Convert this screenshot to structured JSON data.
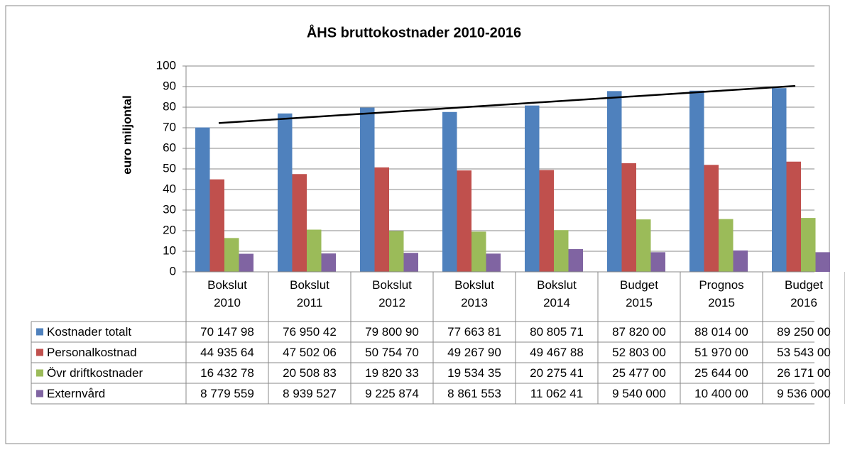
{
  "chart_data": {
    "type": "bar",
    "title": "ÅHS bruttokostnader 2010-2016",
    "y_label": "euro miljontal",
    "categories": [
      "Bokslut 2010",
      "Bokslut 2011",
      "Bokslut 2012",
      "Bokslut 2013",
      "Bokslut 2014",
      "Budget 2015",
      "Prognos 2015",
      "Budget 2016"
    ],
    "series": [
      {
        "name": "Kostnader totalt",
        "color": "#4f81bd",
        "values": [
          70.14798,
          76.95042,
          79.8009,
          77.66381,
          80.80571,
          87.82,
          88.014,
          89.25
        ],
        "value_labels": [
          "70 147 98",
          "76 950 42",
          "79 800 90",
          "77 663 81",
          "80 805 71",
          "87 820 00",
          "88 014 00",
          "89 250 00"
        ]
      },
      {
        "name": "Personalkostnad",
        "color": "#c0504d",
        "values": [
          44.93564,
          47.50206,
          50.7547,
          49.2679,
          49.46788,
          52.803,
          51.97,
          53.543
        ],
        "value_labels": [
          "44 935 64",
          "47 502 06",
          "50 754 70",
          "49 267 90",
          "49 467 88",
          "52 803 00",
          "51 970 00",
          "53 543 00"
        ]
      },
      {
        "name": "Övr driftkostnader",
        "color": "#9bbb59",
        "values": [
          16.43278,
          20.50883,
          19.82033,
          19.53435,
          20.27541,
          25.477,
          25.644,
          26.171
        ],
        "value_labels": [
          "16 432 78",
          "20 508 83",
          "19 820 33",
          "19 534 35",
          "20 275 41",
          "25 477 00",
          "25 644 00",
          "26 171 00"
        ]
      },
      {
        "name": "Externvård",
        "color": "#8064a2",
        "values": [
          8.779559,
          8.939527,
          9.225874,
          8.861553,
          11.06241,
          9.54,
          10.4,
          9.536
        ],
        "value_labels": [
          "8 779 559",
          "8 939 527",
          "9 225 874",
          "8 861 553",
          "11 062 41",
          "9 540 000",
          "10 400 00",
          "9 536 000"
        ]
      }
    ],
    "ylim": [
      0,
      100
    ],
    "yticks": [
      0,
      10,
      20,
      30,
      40,
      50,
      60,
      70,
      80,
      90,
      100
    ],
    "grid": true,
    "trendline": true
  }
}
